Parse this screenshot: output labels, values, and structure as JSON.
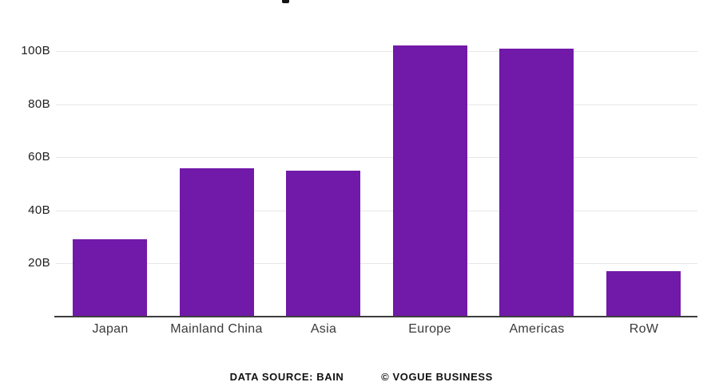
{
  "chart_data": {
    "type": "bar",
    "categories": [
      "Japan",
      "Mainland China",
      "Asia",
      "Europe",
      "Americas",
      "RoW"
    ],
    "values": [
      29,
      56,
      55,
      102,
      101,
      17
    ],
    "title": "",
    "xlabel": "",
    "ylabel": "",
    "ylim": [
      0,
      105
    ],
    "yticks": [
      20,
      40,
      60,
      80,
      100
    ],
    "ytick_labels": [
      "20B",
      "40B",
      "60B",
      "80B",
      "100B"
    ],
    "bar_color": "#7119a8",
    "gridline_color": "#e8e6e9",
    "axis_color": "#3d3d3d",
    "grid": true,
    "legend": false
  },
  "footer": {
    "source": "DATA SOURCE: BAIN",
    "credit": "© VOGUE BUSINESS"
  }
}
